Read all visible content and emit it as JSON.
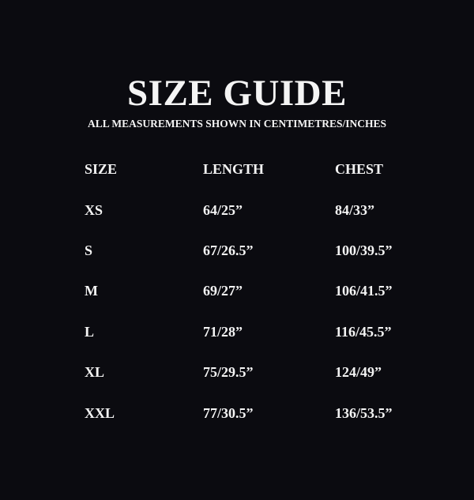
{
  "title": "SIZE GUIDE",
  "subtitle": "ALL MEASUREMENTS SHOWN IN CENTIMETRES/INCHES",
  "colors": {
    "background": "#0b0b10",
    "text": "#f4f4f4"
  },
  "table": {
    "headers": [
      "SIZE",
      "LENGTH",
      "CHEST"
    ],
    "rows": [
      [
        "XS",
        "64/25”",
        "84/33”"
      ],
      [
        "S",
        "67/26.5”",
        "100/39.5”"
      ],
      [
        "M",
        "69/27”",
        "106/41.5”"
      ],
      [
        "L",
        "71/28”",
        "116/45.5”"
      ],
      [
        "XL",
        "75/29.5”",
        "124/49”"
      ],
      [
        "XXL",
        "77/30.5”",
        "136/53.5”"
      ]
    ]
  }
}
